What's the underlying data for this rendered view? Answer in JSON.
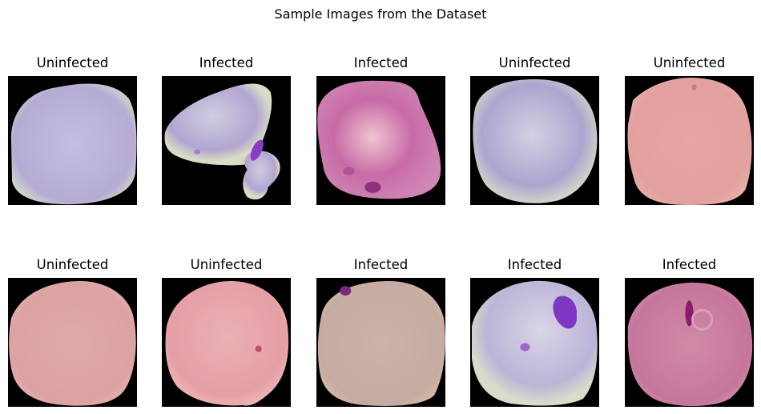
{
  "figure": {
    "title": "Sample Images from the Dataset"
  },
  "samples": [
    {
      "label": "Uninfected",
      "bg": "#000000",
      "cell": "#b6acd3",
      "center": "#c4bde0",
      "rim": "#d6ddc8",
      "stains": []
    },
    {
      "label": "Infected",
      "bg": "#000000",
      "cell": "#b2a6d1",
      "center": "#cfcde0",
      "rim": "#d8dcc6",
      "stains": [
        "#8a3cc2",
        "#9a55c7"
      ]
    },
    {
      "label": "Infected",
      "bg": "#000000",
      "cell": "#c86ba6",
      "center": "#f0c4d0",
      "rim": "#cf86b5",
      "stains": [
        "#8f2f7e",
        "#a34a91"
      ]
    },
    {
      "label": "Uninfected",
      "bg": "#000000",
      "cell": "#aba6cf",
      "center": "#d2d1e3",
      "rim": "#d7dcc7",
      "stains": []
    },
    {
      "label": "Uninfected",
      "bg": "#000000",
      "cell": "#e2a19e",
      "center": "#e6a6a2",
      "rim": "#e9b0a9",
      "stains": [
        "#c06a8a"
      ]
    },
    {
      "label": "Uninfected",
      "bg": "#000000",
      "cell": "#dda2a4",
      "center": "#e1aaaa",
      "rim": "#e6b6b0",
      "stains": []
    },
    {
      "label": "Uninfected",
      "bg": "#000000",
      "cell": "#e59fa6",
      "center": "#eab0b3",
      "rim": "#eebbb8",
      "stains": [
        "#bf4c6e"
      ]
    },
    {
      "label": "Infected",
      "bg": "#000000",
      "cell": "#c5aba1",
      "center": "#ccb4a8",
      "rim": "#d6c0a6",
      "stains": [
        "#7a2a7e"
      ]
    },
    {
      "label": "Infected",
      "bg": "#000000",
      "cell": "#bbb4d7",
      "center": "#d9d5e6",
      "rim": "#d9dccb",
      "stains": [
        "#7e37c0",
        "#9a52c4"
      ]
    },
    {
      "label": "Infected",
      "bg": "#000000",
      "cell": "#c6769b",
      "center": "#d18aa7",
      "rim": "#d596b0",
      "stains": [
        "#8e1a6e"
      ]
    }
  ]
}
